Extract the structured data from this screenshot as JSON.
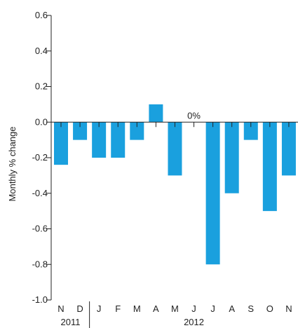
{
  "chart_data": {
    "type": "bar",
    "title": "",
    "ylabel": "Monthly % change",
    "xlabel": "",
    "ylim": [
      -1.0,
      0.6
    ],
    "yticks": [
      "0.6",
      "0.4",
      "0.2",
      "0.0",
      "-0.2",
      "-0.4",
      "-0.6",
      "-0.8",
      "-1.0"
    ],
    "categories": [
      "N",
      "D",
      "J",
      "F",
      "M",
      "A",
      "M",
      "J",
      "J",
      "A",
      "S",
      "O",
      "N"
    ],
    "values": [
      -0.24,
      -0.1,
      -0.2,
      -0.2,
      -0.1,
      0.1,
      -0.3,
      0,
      -0.8,
      -0.4,
      -0.1,
      -0.5,
      -0.3
    ],
    "annotation": "0%",
    "year_groups": [
      {
        "label": "2011",
        "from": 0,
        "to": 1
      },
      {
        "label": "2012",
        "from": 2,
        "to": 12
      }
    ],
    "bar_color": "#1aa0de",
    "grid": false
  }
}
